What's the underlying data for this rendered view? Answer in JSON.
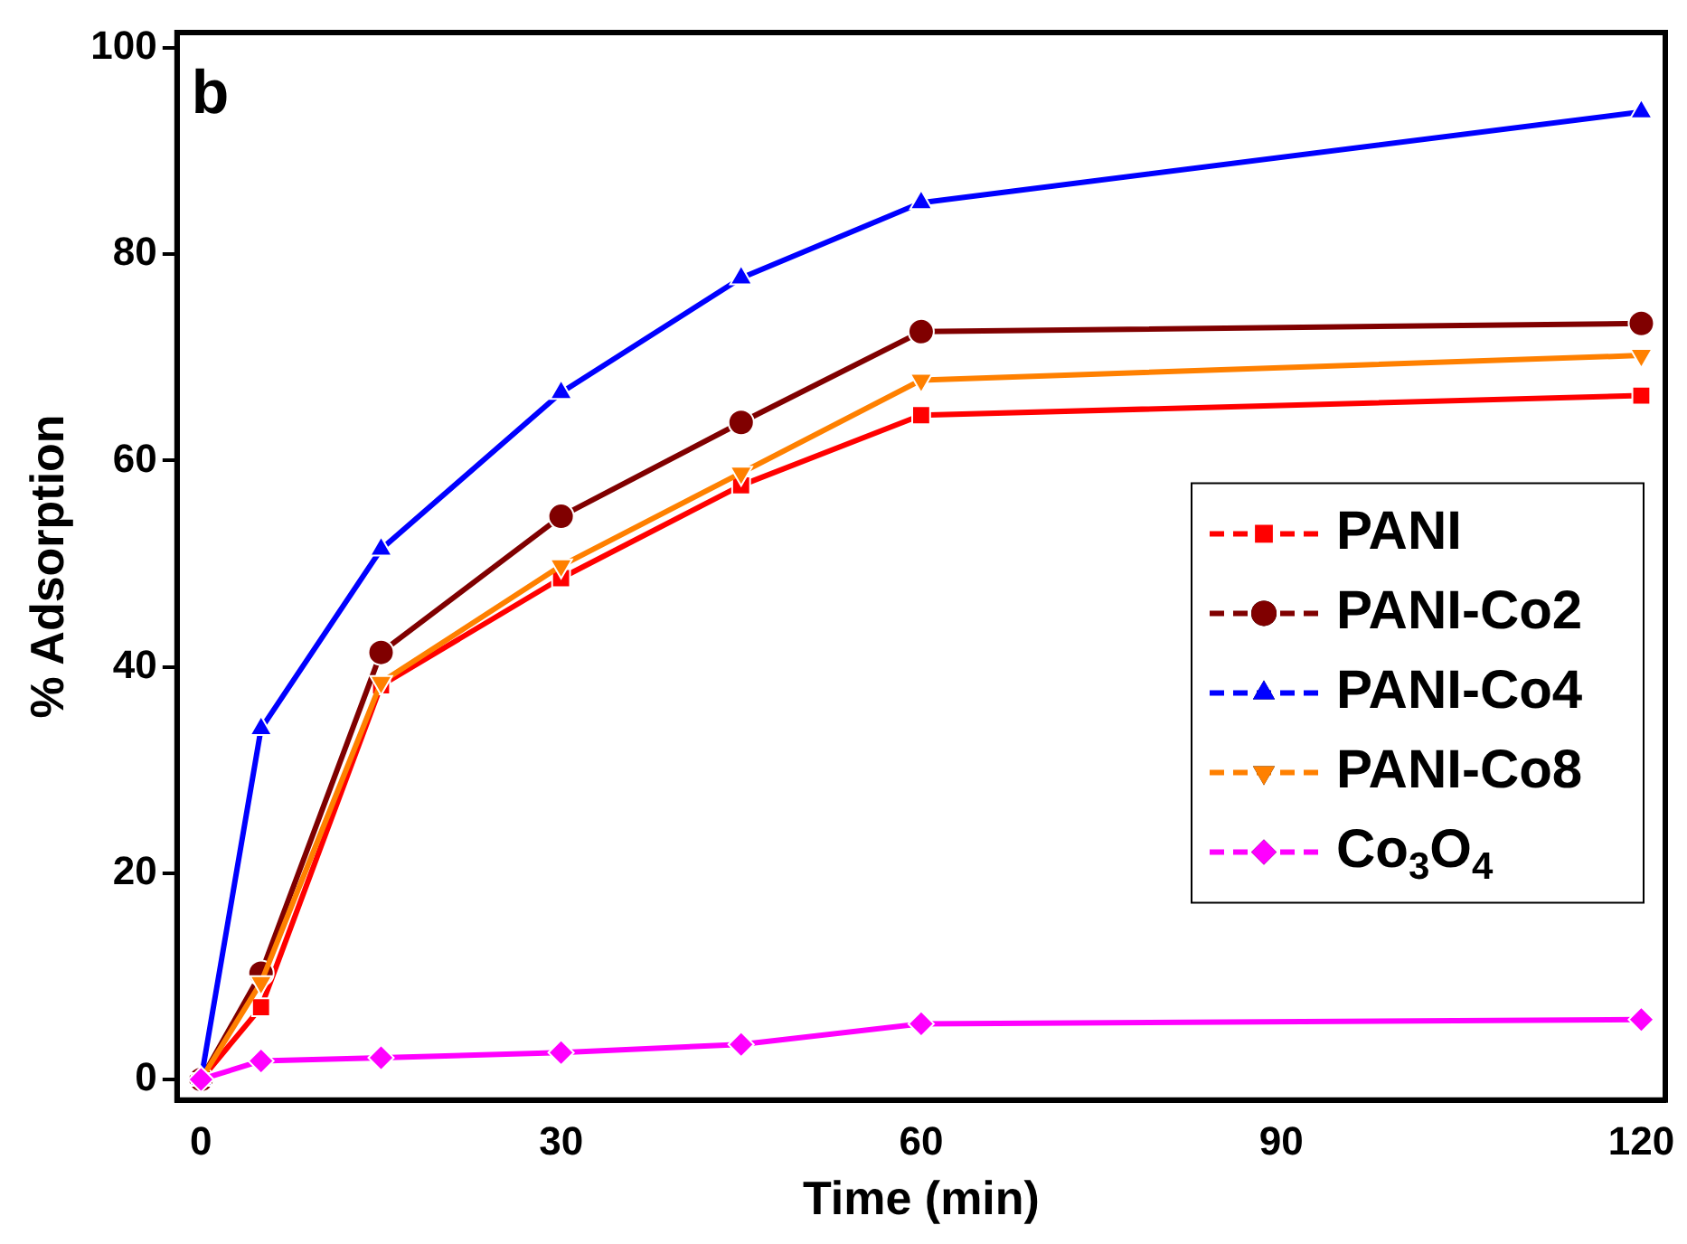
{
  "chart_data": {
    "type": "line",
    "xlabel": "Time (min)",
    "ylabel": "% Adsorption",
    "annotations": [
      "b"
    ],
    "x": [
      0,
      5,
      15,
      30,
      45,
      60,
      120
    ],
    "xlim": [
      -2,
      122
    ],
    "xticks": [
      0,
      30,
      60,
      90,
      120
    ],
    "ylim": [
      -2,
      101.5
    ],
    "yticks": [
      0,
      20,
      40,
      60,
      80,
      100
    ],
    "grid": false,
    "legend": "right",
    "line_style": "solid",
    "series": [
      {
        "name": "PANI",
        "color": "#ff0000",
        "marker": "square",
        "values": [
          0,
          7.0,
          38.2,
          48.6,
          57.6,
          64.4,
          66.3
        ]
      },
      {
        "name": "PANI-Co2",
        "color": "#800000",
        "marker": "circle",
        "values": [
          0,
          10.3,
          41.4,
          54.6,
          63.7,
          72.5,
          73.3
        ]
      },
      {
        "name": "PANI-Co4",
        "color": "#0000ff",
        "marker": "triangle",
        "values": [
          0,
          34.0,
          51.4,
          66.6,
          77.7,
          85.0,
          93.8
        ]
      },
      {
        "name": "PANI-Co8",
        "color": "#ff8000",
        "marker": "triangle_down",
        "values": [
          0,
          9.4,
          38.5,
          49.8,
          58.8,
          67.8,
          70.2
        ]
      },
      {
        "name": "Co$_{3}$O$_{4}$",
        "color": "#ff00ff",
        "marker": "diamond",
        "values": [
          0,
          1.8,
          2.1,
          2.6,
          3.4,
          5.4,
          5.8
        ]
      }
    ]
  }
}
